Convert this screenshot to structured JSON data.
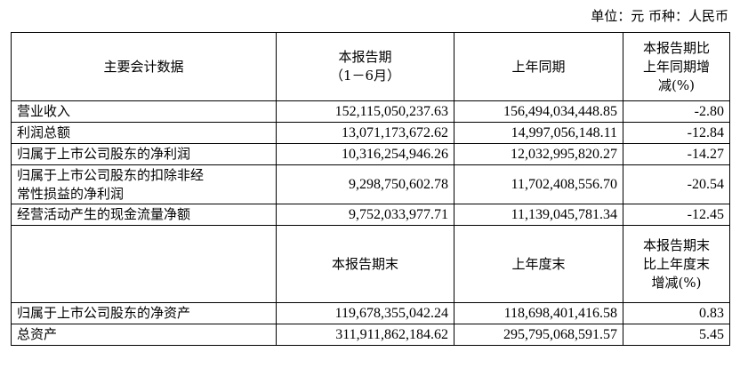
{
  "unit_note": "单位：元  币种：人民币",
  "section1": {
    "headers": {
      "col0": "主要会计数据",
      "col1_line1": "本报告期",
      "col1_line2": "（1－6月）",
      "col2": "上年同期",
      "col3_line1": "本报告期比",
      "col3_line2": "上年同期增",
      "col3_line3": "减(%)"
    },
    "rows": [
      {
        "label": "营业收入",
        "current": "152,115,050,237.63",
        "prior": "156,494,034,448.85",
        "change": "-2.80"
      },
      {
        "label": "利润总额",
        "current": "13,071,173,672.62",
        "prior": "14,997,056,148.11",
        "change": "-12.84"
      },
      {
        "label": "归属于上市公司股东的净利润",
        "current": "10,316,254,946.26",
        "prior": "12,032,995,820.27",
        "change": "-14.27"
      },
      {
        "label_line1": "归属于上市公司股东的扣除非经",
        "label_line2": "常性损益的净利润",
        "current": "9,298,750,602.78",
        "prior": "11,702,408,556.70",
        "change": "-20.54"
      },
      {
        "label": "经营活动产生的现金流量净额",
        "current": "9,752,033,977.71",
        "prior": "11,139,045,781.34",
        "change": "-12.45"
      }
    ]
  },
  "section2": {
    "headers": {
      "col0": "",
      "col1": "本报告期末",
      "col2": "上年度末",
      "col3_line1": "本报告期末",
      "col3_line2": "比上年度末",
      "col3_line3": "增减(%)"
    },
    "rows": [
      {
        "label": "归属于上市公司股东的净资产",
        "current": "119,678,355,042.24",
        "prior": "118,698,401,416.58",
        "change": "0.83"
      },
      {
        "label": "总资产",
        "current": "311,911,862,184.62",
        "prior": "295,795,068,591.57",
        "change": "5.45"
      }
    ]
  }
}
